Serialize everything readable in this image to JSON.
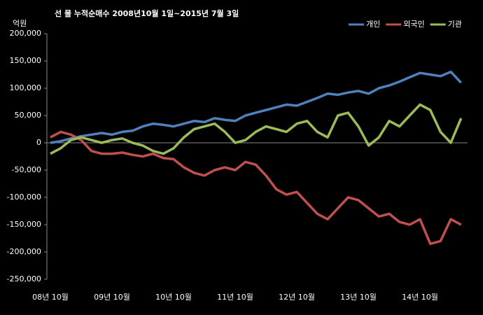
{
  "chart_data": {
    "type": "line",
    "title": "선 물 누적순매수 2008년10월 1일~2015년 7월 3일",
    "y_axis_label": "억원",
    "categories": [
      "08년 10월",
      null,
      null,
      null,
      null,
      null,
      "09년 10월",
      null,
      null,
      null,
      null,
      null,
      "10년 10월",
      null,
      null,
      null,
      null,
      null,
      "11년 10월",
      null,
      null,
      null,
      null,
      null,
      "12년 10월",
      null,
      null,
      null,
      null,
      null,
      "13년 10월",
      null,
      null,
      null,
      null,
      null,
      "14년 10월",
      null,
      null,
      null,
      null
    ],
    "series": [
      {
        "name": "개인",
        "color": "#4f81bd",
        "values": [
          0,
          3000,
          8000,
          12000,
          15000,
          18000,
          15000,
          20000,
          22000,
          30000,
          35000,
          33000,
          30000,
          35000,
          40000,
          38000,
          45000,
          42000,
          40000,
          50000,
          55000,
          60000,
          65000,
          70000,
          68000,
          75000,
          82000,
          90000,
          88000,
          92000,
          95000,
          90000,
          100000,
          105000,
          112000,
          120000,
          128000,
          125000,
          122000,
          130000,
          110000
        ]
      },
      {
        "name": "외국인",
        "color": "#c0504d",
        "values": [
          10000,
          20000,
          15000,
          5000,
          -15000,
          -20000,
          -20000,
          -18000,
          -22000,
          -25000,
          -20000,
          -28000,
          -30000,
          -45000,
          -55000,
          -60000,
          -50000,
          -45000,
          -50000,
          -35000,
          -40000,
          -60000,
          -85000,
          -95000,
          -90000,
          -110000,
          -130000,
          -140000,
          -120000,
          -100000,
          -105000,
          -120000,
          -135000,
          -130000,
          -145000,
          -150000,
          -140000,
          -185000,
          -180000,
          -140000,
          -150000
        ]
      },
      {
        "name": "기관",
        "color": "#9bbb59",
        "values": [
          -20000,
          -10000,
          5000,
          10000,
          5000,
          0,
          5000,
          8000,
          0,
          -5000,
          -15000,
          -20000,
          -10000,
          10000,
          25000,
          30000,
          35000,
          20000,
          0,
          5000,
          20000,
          30000,
          25000,
          20000,
          35000,
          40000,
          20000,
          10000,
          50000,
          55000,
          30000,
          -5000,
          10000,
          40000,
          30000,
          50000,
          70000,
          60000,
          20000,
          0,
          45000
        ]
      }
    ],
    "ylim": [
      -250000,
      200000
    ],
    "yticks": [
      {
        "value": -250000,
        "label": "-250,000"
      },
      {
        "value": -200000,
        "label": "-200,000"
      },
      {
        "value": -150000,
        "label": "-150,000"
      },
      {
        "value": -100000,
        "label": "-100,000"
      },
      {
        "value": -50000,
        "label": "-50,000"
      },
      0,
      {
        "value": 50000,
        "label": "50,000"
      },
      {
        "value": 100000,
        "label": "100,000"
      },
      {
        "value": 150000,
        "label": "150,000"
      },
      {
        "value": 200000,
        "label": "200,000"
      }
    ],
    "grid": false,
    "legend": "top-right"
  }
}
